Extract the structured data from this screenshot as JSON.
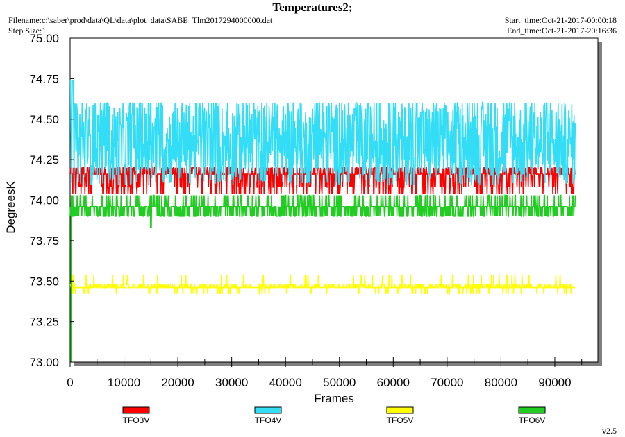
{
  "header": {
    "title": "Temperatures2;",
    "filename": "Filename:c:\\saber\\prod\\data\\QL\\data\\plot_data\\SABE_Tlm2017294000000.dat",
    "step_size": "Step Size:1",
    "start_time": "Start_time:Oct-21-2017-00:00:18",
    "end_time": "End_time:Oct-21-2017-20:16:36"
  },
  "footer": {
    "version": "v2.5"
  },
  "chart_data": {
    "type": "line",
    "title": "Temperatures2;",
    "xlabel": "Frames",
    "ylabel": "DegreesK",
    "xlim": [
      0,
      98000
    ],
    "ylim": [
      73.0,
      75.0
    ],
    "xticks": [
      0,
      10000,
      20000,
      30000,
      40000,
      50000,
      60000,
      70000,
      80000,
      90000
    ],
    "xtick_labels": [
      "0",
      "10000",
      "20000",
      "30000",
      "40000",
      "50000",
      "60000",
      "70000",
      "80000",
      "90000"
    ],
    "yticks": [
      73.0,
      73.25,
      73.5,
      73.75,
      74.0,
      74.25,
      74.5,
      74.75,
      75.0
    ],
    "ytick_labels": [
      "73.00",
      "73.25",
      "73.50",
      "73.75",
      "74.00",
      "74.25",
      "74.50",
      "74.75",
      "75.00"
    ],
    "x_end": 93800,
    "grid": false,
    "legend_position": "bottom",
    "series": [
      {
        "name": "TFO3V",
        "color": "#ff0000",
        "range": [
          74.04,
          74.24
        ],
        "typical": 74.16
      },
      {
        "name": "TFO4V",
        "color": "#33ddf5",
        "range": [
          74.0,
          74.6
        ],
        "typical": 74.3,
        "peak": 74.74
      },
      {
        "name": "TFO5V",
        "color": "#ffff00",
        "range": [
          73.42,
          73.54
        ],
        "typical": 73.46
      },
      {
        "name": "TFO6V",
        "color": "#22cc22",
        "range": [
          73.9,
          74.03
        ],
        "typical": 73.96,
        "min": 73.83
      }
    ]
  }
}
